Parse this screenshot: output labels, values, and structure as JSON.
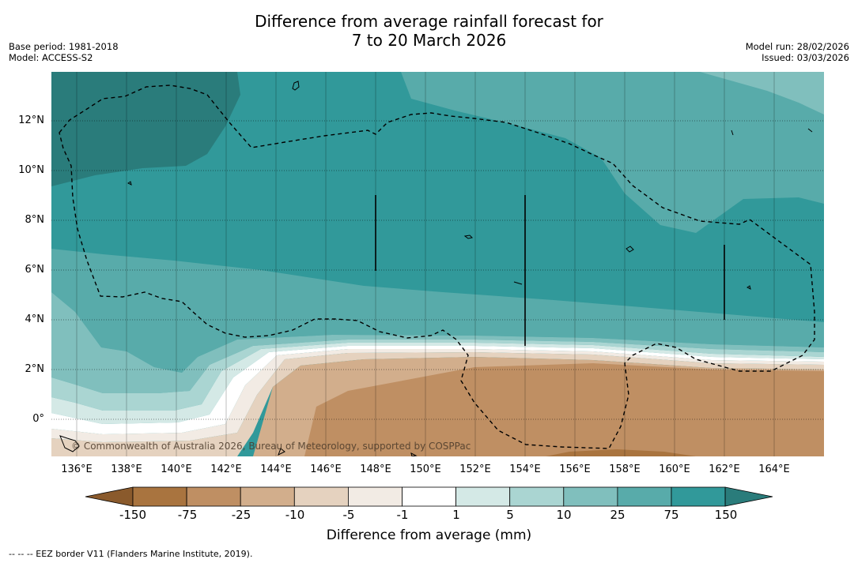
{
  "title": {
    "line1": "Difference from average rainfall forecast for",
    "line2": "7 to 20 March 2026"
  },
  "meta": {
    "base_period": "Base period: 1981-2018",
    "model": "Model: ACCESS-S2",
    "model_run": "Model run: 28/02/2026",
    "issued": "Issued: 03/03/2026"
  },
  "map": {
    "lat_labels": [
      "12°N",
      "10°N",
      "8°N",
      "6°N",
      "4°N",
      "2°N",
      "0°"
    ],
    "lon_labels": [
      "136°E",
      "138°E",
      "140°E",
      "142°E",
      "144°E",
      "146°E",
      "148°E",
      "150°E",
      "152°E",
      "154°E",
      "156°E",
      "158°E",
      "160°E",
      "162°E",
      "164°E"
    ],
    "copyright": "© Commonwealth of Australia 2026, Bureau of Meteorology, supported by COSPPac"
  },
  "colorbar": {
    "title": "Difference from average (mm)",
    "ticks": [
      "-150",
      "-75",
      "-25",
      "-10",
      "-5",
      "-1",
      "1",
      "5",
      "10",
      "25",
      "75",
      "150"
    ],
    "colors": {
      "under": "#8a5a2c",
      "bins": [
        "#a9743f",
        "#bf8f63",
        "#d2ae8c",
        "#e5d2bf",
        "#f2ebe4",
        "#ffffff",
        "#d4e9e6",
        "#aad5d2",
        "#80bfbd",
        "#58abaa",
        "#31999a"
      ],
      "over": "#2a7c7b"
    }
  },
  "footer": "--  --  -- EEZ border V11 (Flanders Marine Institute, 2019)."
}
